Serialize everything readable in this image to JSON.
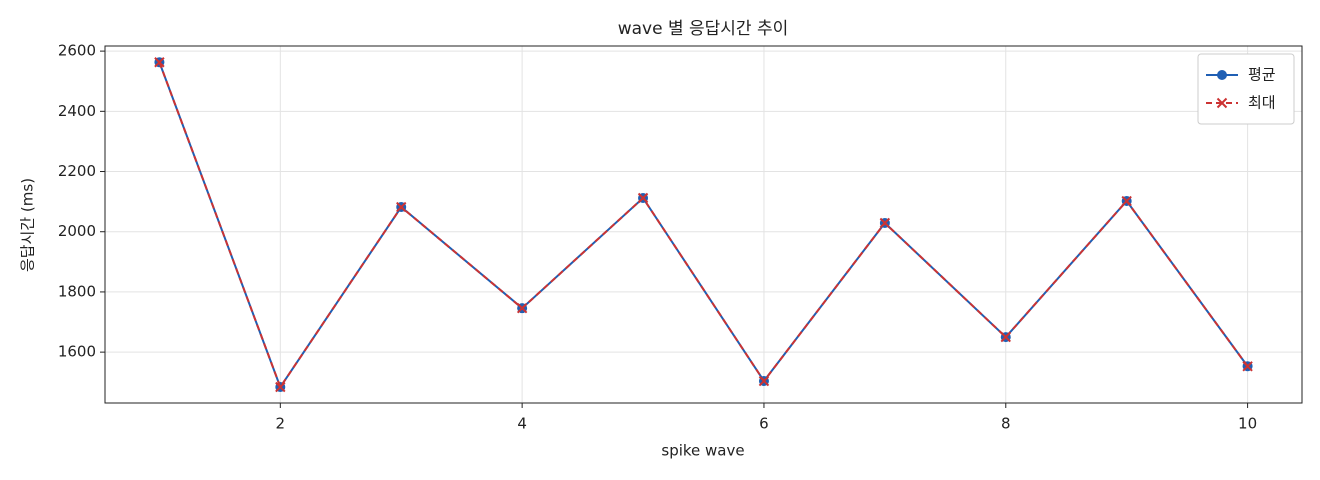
{
  "chart_data": {
    "type": "line",
    "title": "wave 별 응답시간 추이",
    "xlabel": "spike wave",
    "ylabel": "응답시간 (ms)",
    "x": [
      1,
      2,
      3,
      4,
      5,
      6,
      7,
      8,
      9,
      10
    ],
    "series": [
      {
        "name": "평균",
        "color": "#1f5fb4",
        "dash": false,
        "marker": "circle",
        "values": [
          2563,
          1484,
          2082,
          1746,
          2112,
          1504,
          2029,
          1650,
          2102,
          1553
        ]
      },
      {
        "name": "최대",
        "color": "#cc3333",
        "dash": true,
        "marker": "x",
        "values": [
          2563,
          1484,
          2082,
          1746,
          2112,
          1504,
          2029,
          1650,
          2102,
          1553
        ]
      }
    ],
    "xlim": [
      0.55,
      10.45
    ],
    "ylim": [
      1431,
      2617
    ],
    "xticks": [
      2,
      4,
      6,
      8,
      10
    ],
    "yticks": [
      1600,
      1800,
      2000,
      2200,
      2400,
      2600
    ],
    "grid": true,
    "legend": "upper right"
  }
}
